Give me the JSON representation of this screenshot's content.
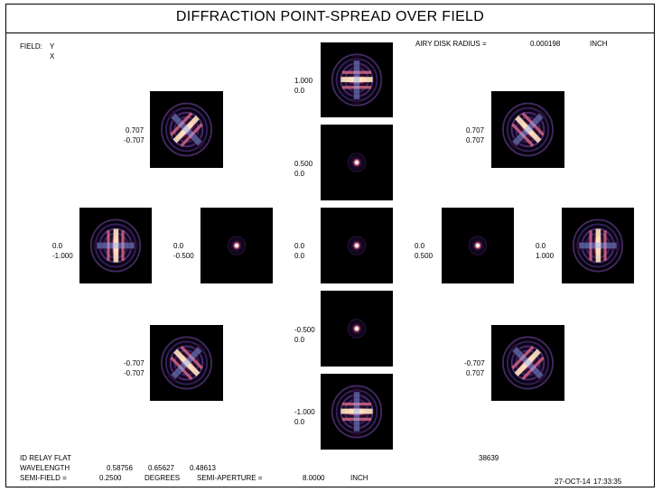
{
  "title": "DIFFRACTION POINT-SPREAD OVER FIELD",
  "field_label": "FIELD:",
  "field_axis_y": "Y",
  "field_axis_x": "X",
  "airy_label": "AIRY DISK RADIUS =",
  "airy_value": "0.000198",
  "airy_unit": "INCH",
  "psf": [
    {
      "y": "1.000",
      "x": "0.0",
      "pattern": "edge"
    },
    {
      "y": "0.707",
      "x": "-0.707",
      "pattern": "diag-a"
    },
    {
      "y": "0.707",
      "x": "0.707",
      "pattern": "diag-b"
    },
    {
      "y": "0.500",
      "x": "0.0",
      "pattern": "spot"
    },
    {
      "y": "0.0",
      "x": "-1.000",
      "pattern": "edge-v"
    },
    {
      "y": "0.0",
      "x": "-0.500",
      "pattern": "spot"
    },
    {
      "y": "0.0",
      "x": "0.0",
      "pattern": "spot"
    },
    {
      "y": "0.0",
      "x": "0.500",
      "pattern": "spot"
    },
    {
      "y": "0.0",
      "x": "1.000",
      "pattern": "edge-v"
    },
    {
      "y": "-0.500",
      "x": "0.0",
      "pattern": "spot"
    },
    {
      "y": "-0.707",
      "x": "-0.707",
      "pattern": "diag-b"
    },
    {
      "y": "-0.707",
      "x": "0.707",
      "pattern": "diag-a"
    },
    {
      "y": "-1.000",
      "x": "0.0",
      "pattern": "edge"
    }
  ],
  "footer": {
    "system_name": "ID RELAY FLAT",
    "wavelength_label": "WAVELENGTH",
    "wavelengths": [
      "0.58756",
      "0.65627",
      "0.48613"
    ],
    "semi_field_label": "SEMI-FIELD =",
    "semi_field_value": "0.2500",
    "semi_field_unit": "DEGREES",
    "semi_aperture_label": "SEMI-APERTURE =",
    "semi_aperture_value": "8.0000",
    "semi_aperture_unit": "INCH",
    "id_number": "38639",
    "date": "27-OCT-14",
    "time": "17:33:35"
  }
}
